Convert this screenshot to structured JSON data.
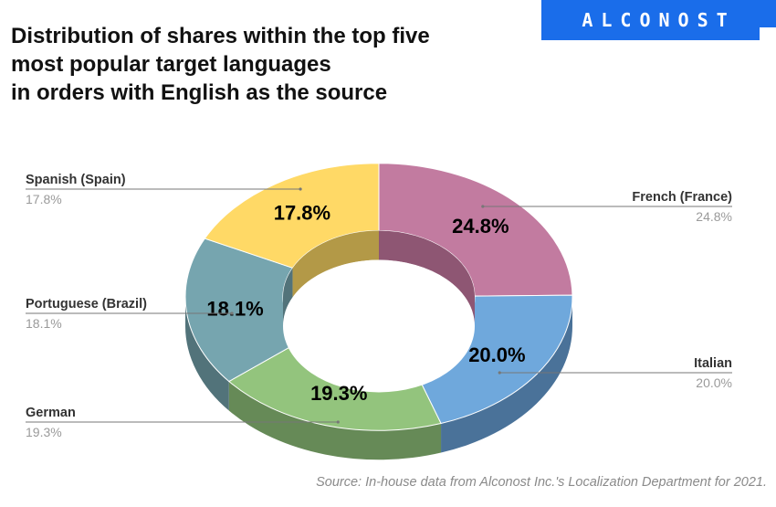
{
  "title_lines": [
    "Distribution of shares within the top five",
    "most popular target languages",
    "in orders with English as the source"
  ],
  "logo": {
    "text": "ALCONOST",
    "color": "#1a6dea"
  },
  "source": "Source: In-house data from Alconost Inc.'s Localization Department for 2021.",
  "chart_data": {
    "type": "pie",
    "donut": true,
    "style": "3d",
    "title": "Distribution of shares within the top five most popular target languages in orders with English as the source",
    "unit": "%",
    "slices": [
      {
        "label": "French (France)",
        "value": 24.8,
        "display": "24.8%",
        "color": "#c27ba0",
        "side_color": "#8e5673"
      },
      {
        "label": "Italian",
        "value": 20.0,
        "display": "20.0%",
        "color": "#6fa8dc",
        "side_color": "#4a7299"
      },
      {
        "label": "German",
        "value": 19.3,
        "display": "19.3%",
        "color": "#93c47d",
        "side_color": "#668a57"
      },
      {
        "label": "Portuguese (Brazil)",
        "value": 18.1,
        "display": "18.1%",
        "color": "#76a5af",
        "side_color": "#52737a"
      },
      {
        "label": "Spanish (Spain)",
        "value": 17.8,
        "display": "17.8%",
        "color": "#ffd966",
        "side_color": "#b39947"
      }
    ]
  }
}
